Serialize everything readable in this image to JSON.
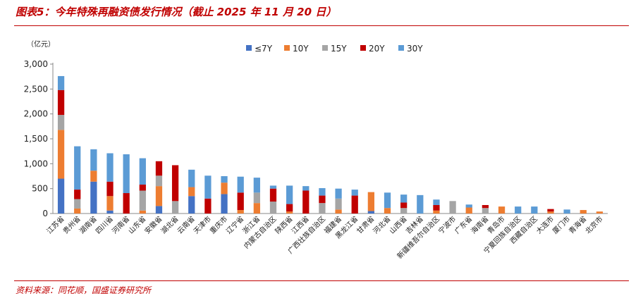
{
  "title": "图表5：今年特殊再融资债发行情况（截止 2025 年 11 月 20 日）",
  "source": "资料来源：同花顺，国盛证券研究所",
  "chart_data": {
    "type": "bar",
    "stacked": true,
    "unit": "（亿元）",
    "ylim": [
      0,
      3000
    ],
    "yticks": [
      "0",
      "500",
      "1,000",
      "1,500",
      "2,000",
      "2,500",
      "3,000"
    ],
    "legend_position": "top",
    "categories": [
      "江苏省",
      "贵州省",
      "湖南省",
      "四川省",
      "河南省",
      "山东省",
      "安徽省",
      "湖北省",
      "云南省",
      "天津市",
      "重庆市",
      "辽宁省",
      "浙江省",
      "内蒙古自治区",
      "陕西省",
      "江西省",
      "广西壮族自治区",
      "福建省",
      "黑龙江省",
      "甘肃省",
      "河北省",
      "山西省",
      "吉林省",
      "新疆维吾尔自治区",
      "宁波市",
      "广东省",
      "海南省",
      "青岛市",
      "宁夏回族自治区",
      "西藏自治区",
      "大连市",
      "厦门市",
      "青海省",
      "北京市"
    ],
    "series": [
      {
        "name": "≤7Y",
        "color": "#4472c4",
        "values": [
          700,
          0,
          640,
          60,
          0,
          0,
          150,
          0,
          350,
          0,
          390,
          0,
          0,
          0,
          0,
          0,
          0,
          0,
          0,
          50,
          0,
          0,
          0,
          0,
          0,
          0,
          0,
          0,
          0,
          0,
          0,
          0,
          0,
          0
        ]
      },
      {
        "name": "10Y",
        "color": "#ed7d31",
        "values": [
          980,
          100,
          220,
          290,
          0,
          60,
          400,
          0,
          180,
          0,
          230,
          70,
          210,
          0,
          40,
          0,
          0,
          80,
          0,
          380,
          110,
          0,
          0,
          60,
          0,
          120,
          0,
          140,
          0,
          0,
          40,
          0,
          70,
          40
        ]
      },
      {
        "name": "15Y",
        "color": "#a5a5a5",
        "values": [
          300,
          190,
          0,
          0,
          0,
          400,
          210,
          250,
          0,
          0,
          0,
          0,
          210,
          240,
          0,
          0,
          210,
          220,
          0,
          0,
          0,
          110,
          0,
          0,
          250,
          0,
          110,
          0,
          0,
          0,
          0,
          0,
          0,
          0
        ]
      },
      {
        "name": "20Y",
        "color": "#c00000",
        "values": [
          500,
          190,
          0,
          290,
          410,
          120,
          290,
          720,
          0,
          300,
          0,
          350,
          0,
          260,
          150,
          460,
          150,
          0,
          360,
          0,
          0,
          110,
          0,
          110,
          0,
          0,
          60,
          0,
          0,
          0,
          50,
          0,
          0,
          0
        ]
      },
      {
        "name": "30Y",
        "color": "#5b9bd5",
        "values": [
          280,
          870,
          430,
          570,
          780,
          530,
          0,
          0,
          350,
          460,
          130,
          320,
          300,
          60,
          370,
          90,
          150,
          200,
          120,
          0,
          310,
          160,
          370,
          110,
          0,
          60,
          0,
          0,
          140,
          140,
          0,
          80,
          0,
          0
        ]
      }
    ]
  }
}
